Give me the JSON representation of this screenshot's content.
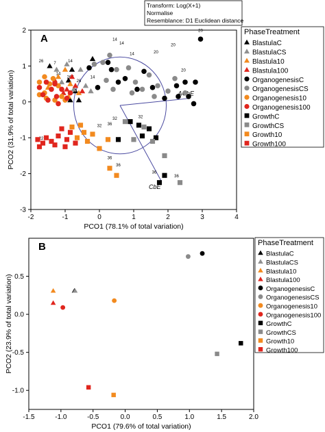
{
  "chart_data": [
    {
      "type": "scatter",
      "panel_label": "A",
      "xlabel": "PCO1 (78.1% of total variation)",
      "ylabel": "PCO2 (31.9% of total variation)",
      "xlim": [
        -2,
        4
      ],
      "ylim": [
        -3,
        2
      ],
      "xticks": [
        -2,
        -1,
        0,
        1,
        2,
        3,
        4
      ],
      "yticks": [
        -3,
        -2,
        -1,
        0,
        1,
        2
      ],
      "info_lines": [
        "Transform: Log(X+1)",
        "Normalise",
        "Resemblance: D1 Euclidean distance"
      ],
      "legend_title": "PhaseTreatment",
      "legend_position": "right",
      "circle": {
        "center": [
          0.6,
          -0.1
        ],
        "radius": 1.35
      },
      "vectors": [
        {
          "name": "AChE",
          "x": 2.65,
          "y": 0.1
        },
        {
          "name": "CbE",
          "x": 1.8,
          "y": -2.2
        }
      ],
      "series": [
        {
          "name": "BlastulaC",
          "marker": "triangle",
          "color": "#000000",
          "points": [
            [
              -1.45,
              1.0
            ],
            [
              -0.9,
              0.6
            ],
            [
              -0.8,
              0.9
            ],
            [
              -0.85,
              0.05
            ],
            [
              -0.2,
              1.2
            ],
            [
              -0.7,
              0.3
            ],
            [
              -0.6,
              0.05
            ]
          ]
        },
        {
          "name": "BlastulaCS",
          "marker": "triangle",
          "color": "#909090",
          "points": [
            [
              -1.25,
              0.9
            ],
            [
              -0.95,
              1.05
            ],
            [
              -0.75,
              0.35
            ],
            [
              -0.4,
              0.45
            ],
            [
              -0.55,
              0.9
            ],
            [
              -0.25,
              0.3
            ],
            [
              -1.1,
              0.55
            ]
          ]
        },
        {
          "name": "Blastula10",
          "marker": "triangle",
          "color": "#f28a1f",
          "points": [
            [
              -1.2,
              0.7
            ],
            [
              -1.0,
              0.9
            ],
            [
              -1.5,
              0.4
            ],
            [
              -0.85,
              0.5
            ],
            [
              -0.6,
              0.25
            ],
            [
              -0.9,
              0.15
            ]
          ]
        },
        {
          "name": "Blastula100",
          "marker": "triangle",
          "color": "#e0261e",
          "points": [
            [
              -1.3,
              0.6
            ],
            [
              -0.95,
              0.35
            ],
            [
              -0.7,
              0.45
            ],
            [
              -1.05,
              0.25
            ],
            [
              -0.8,
              0.7
            ],
            [
              -0.5,
              0.3
            ]
          ]
        },
        {
          "name": "OrganogenesisC",
          "marker": "circle",
          "color": "#000000",
          "points": [
            [
              2.95,
              1.75
            ],
            [
              -0.3,
              0.95
            ],
            [
              0.25,
              1.1
            ],
            [
              0.55,
              0.55
            ],
            [
              0.75,
              0.65
            ],
            [
              1.3,
              0.85
            ],
            [
              1.55,
              0.4
            ],
            [
              1.9,
              0.1
            ],
            [
              2.25,
              0.45
            ],
            [
              2.5,
              0.55
            ],
            [
              2.6,
              0.15
            ],
            [
              2.8,
              0.55
            ],
            [
              2.3,
              0.15
            ],
            [
              2.75,
              -0.05
            ],
            [
              -0.05,
              0.4
            ],
            [
              0.35,
              0.9
            ],
            [
              1.1,
              0.35
            ]
          ]
        },
        {
          "name": "OrganogenesisCS",
          "marker": "circle",
          "color": "#8a8a8a",
          "points": [
            [
              0.1,
              1.1
            ],
            [
              0.3,
              1.3
            ],
            [
              0.5,
              0.9
            ],
            [
              0.85,
              0.95
            ],
            [
              1.05,
              0.55
            ],
            [
              1.25,
              0.35
            ],
            [
              1.45,
              0.75
            ],
            [
              1.7,
              0.45
            ],
            [
              2.0,
              0.3
            ],
            [
              2.2,
              0.65
            ],
            [
              2.5,
              0.25
            ],
            [
              -0.15,
              1.05
            ],
            [
              0.2,
              0.6
            ],
            [
              0.95,
              0.25
            ],
            [
              1.6,
              0.15
            ],
            [
              0.4,
              0.35
            ]
          ]
        },
        {
          "name": "Organogenesis10",
          "marker": "circle",
          "color": "#f28a1f",
          "points": [
            [
              -1.75,
              0.55
            ],
            [
              -1.6,
              0.25
            ],
            [
              -1.45,
              0.5
            ],
            [
              -1.2,
              0.45
            ],
            [
              -1.1,
              0.15
            ],
            [
              -1.55,
              0.1
            ],
            [
              -1.3,
              0.05
            ],
            [
              -1.75,
              0.2
            ],
            [
              -1.0,
              0.05
            ],
            [
              -1.35,
              0.65
            ],
            [
              -1.6,
              0.7
            ]
          ]
        },
        {
          "name": "Organogenesis100",
          "marker": "circle",
          "color": "#e0261e",
          "points": [
            [
              -1.75,
              0.4
            ],
            [
              -1.55,
              0.55
            ],
            [
              -1.4,
              0.35
            ],
            [
              -1.25,
              0.15
            ],
            [
              -1.1,
              0.35
            ],
            [
              -0.95,
              0.1
            ],
            [
              -1.5,
              0.05
            ],
            [
              -1.2,
              -0.05
            ],
            [
              -1.65,
              0.2
            ],
            [
              -0.85,
              0.25
            ],
            [
              -1.3,
              0.5
            ]
          ]
        },
        {
          "name": "GrowthC",
          "marker": "square",
          "color": "#000000",
          "points": [
            [
              0.55,
              -1.05
            ],
            [
              0.9,
              -0.55
            ],
            [
              1.15,
              -0.65
            ],
            [
              1.45,
              -0.75
            ],
            [
              1.75,
              -2.25
            ],
            [
              1.9,
              -2.05
            ],
            [
              1.65,
              -1.0
            ],
            [
              1.25,
              -0.95
            ]
          ]
        },
        {
          "name": "GrowthCS",
          "marker": "square",
          "color": "#8a8a8a",
          "points": [
            [
              0.75,
              -0.55
            ],
            [
              1.0,
              -1.05
            ],
            [
              1.3,
              -0.7
            ],
            [
              2.35,
              -2.25
            ],
            [
              1.9,
              -1.5
            ],
            [
              1.55,
              -1.1
            ]
          ]
        },
        {
          "name": "Growth10",
          "marker": "square",
          "color": "#f28a1f",
          "points": [
            [
              -0.55,
              -0.65
            ],
            [
              -0.45,
              -0.85
            ],
            [
              -0.2,
              -0.9
            ],
            [
              0.3,
              -1.85
            ],
            [
              0.5,
              -2.05
            ],
            [
              -0.65,
              -1.0
            ],
            [
              -0.35,
              -1.1
            ],
            [
              0.0,
              -1.3
            ],
            [
              0.25,
              -1.05
            ],
            [
              -0.8,
              -0.7
            ]
          ]
        },
        {
          "name": "Growth100",
          "marker": "square",
          "color": "#e0261e",
          "points": [
            [
              -1.8,
              -1.05
            ],
            [
              -1.65,
              -1.15
            ],
            [
              -1.4,
              -1.1
            ],
            [
              -1.2,
              -0.95
            ],
            [
              -1.0,
              -1.25
            ],
            [
              -0.85,
              -0.85
            ],
            [
              -1.3,
              -1.2
            ],
            [
              -1.55,
              -1.0
            ],
            [
              -0.7,
              -1.15
            ],
            [
              -1.1,
              -0.75
            ],
            [
              -1.75,
              -1.25
            ],
            [
              -0.95,
              -1.05
            ]
          ]
        }
      ],
      "annotations": [
        {
          "text": "20",
          "x": 2.95,
          "y": 1.95
        },
        {
          "text": "26",
          "x": -1.7,
          "y": 1.1
        },
        {
          "text": "7",
          "x": -1.3,
          "y": 1.05
        },
        {
          "text": "14",
          "x": -0.85,
          "y": 1.1
        },
        {
          "text": "14",
          "x": 0.45,
          "y": 1.7
        },
        {
          "text": "14",
          "x": 0.65,
          "y": 1.6
        },
        {
          "text": "14",
          "x": 0.95,
          "y": 1.3
        },
        {
          "text": "20",
          "x": 1.65,
          "y": 1.35
        },
        {
          "text": "20",
          "x": 2.15,
          "y": 1.55
        },
        {
          "text": "20",
          "x": 2.45,
          "y": 0.85
        },
        {
          "text": "26",
          "x": -0.6,
          "y": 0.55
        },
        {
          "text": "267",
          "x": -0.85,
          "y": 0.65
        },
        {
          "text": "14",
          "x": -1.2,
          "y": 0.75
        },
        {
          "text": "14",
          "x": -0.2,
          "y": 0.65
        },
        {
          "text": "32",
          "x": 0.0,
          "y": -0.7
        },
        {
          "text": "32",
          "x": 0.45,
          "y": -0.5
        },
        {
          "text": "32",
          "x": 1.2,
          "y": -0.45
        },
        {
          "text": "36",
          "x": 0.3,
          "y": -0.65
        },
        {
          "text": "36",
          "x": 0.3,
          "y": -1.6
        },
        {
          "text": "36",
          "x": 0.55,
          "y": -1.8
        },
        {
          "text": "36",
          "x": 1.6,
          "y": -2.0
        },
        {
          "text": "36",
          "x": 2.25,
          "y": -2.1
        },
        {
          "text": "22",
          "x": -1.7,
          "y": -1.05
        }
      ]
    },
    {
      "type": "scatter",
      "panel_label": "B",
      "xlabel": "PCO1 (79.6% of total variation)",
      "ylabel": "PCO2 (23.9% of total variation)",
      "xlim": [
        -1.5,
        2.0
      ],
      "ylim": [
        -1.25,
        1.0
      ],
      "xticks": [
        -1.5,
        -1.0,
        -0.5,
        0.0,
        0.5,
        1.0,
        1.5,
        2.0
      ],
      "yticks": [
        -1.0,
        -0.5,
        0.0,
        0.5
      ],
      "legend_title": "PhaseTreatment",
      "legend_position": "top-right",
      "series": [
        {
          "name": "BlastulaC",
          "marker": "triangle",
          "color": "#000000",
          "points": [
            [
              -0.79,
              0.31
            ]
          ]
        },
        {
          "name": "BlastulaCS",
          "marker": "triangle",
          "color": "#909090",
          "points": [
            [
              -0.78,
              0.31
            ]
          ]
        },
        {
          "name": "Blastula10",
          "marker": "triangle",
          "color": "#f28a1f",
          "points": [
            [
              -1.12,
              0.31
            ]
          ]
        },
        {
          "name": "Blastula100",
          "marker": "triangle",
          "color": "#e0261e",
          "points": [
            [
              -1.12,
              0.15
            ]
          ]
        },
        {
          "name": "OrganogenesisC",
          "marker": "circle",
          "color": "#000000",
          "points": [
            [
              1.2,
              0.8
            ]
          ]
        },
        {
          "name": "OrganogenesisCS",
          "marker": "circle",
          "color": "#8a8a8a",
          "points": [
            [
              0.98,
              0.76
            ]
          ]
        },
        {
          "name": "Organogenesis10",
          "marker": "circle",
          "color": "#f28a1f",
          "points": [
            [
              -0.17,
              0.18
            ]
          ]
        },
        {
          "name": "Organogenesis100",
          "marker": "circle",
          "color": "#e0261e",
          "points": [
            [
              -0.97,
              0.09
            ]
          ]
        },
        {
          "name": "GrowthC",
          "marker": "square",
          "color": "#000000",
          "points": [
            [
              1.8,
              -0.38
            ]
          ]
        },
        {
          "name": "GrowthCS",
          "marker": "square",
          "color": "#8a8a8a",
          "points": [
            [
              1.43,
              -0.52
            ]
          ]
        },
        {
          "name": "Growth10",
          "marker": "square",
          "color": "#f28a1f",
          "points": [
            [
              -0.18,
              -1.06
            ]
          ]
        },
        {
          "name": "Growth100",
          "marker": "square",
          "color": "#e0261e",
          "points": [
            [
              -0.57,
              -0.96
            ]
          ]
        }
      ]
    }
  ]
}
